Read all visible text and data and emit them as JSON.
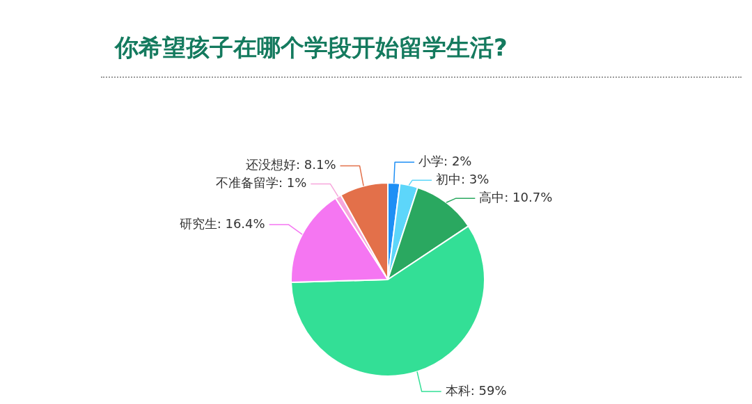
{
  "chart_data": {
    "type": "pie",
    "title": "你希望孩子在哪个学段开始留学生活?",
    "categories": [
      "小学",
      "初中",
      "高中",
      "本科",
      "研究生",
      "不准备留学",
      "还没想好"
    ],
    "values": [
      2,
      3,
      10.7,
      59,
      16.4,
      1,
      8.1
    ],
    "colors": [
      "#1e8ff5",
      "#5dd6fa",
      "#2aa860",
      "#33df96",
      "#f576f2",
      "#f7a6dc",
      "#e3704a"
    ],
    "value_labels": [
      "2%",
      "3%",
      "10.7%",
      "59%",
      "16.4%",
      "1%",
      "8.1%"
    ],
    "legend": false
  }
}
